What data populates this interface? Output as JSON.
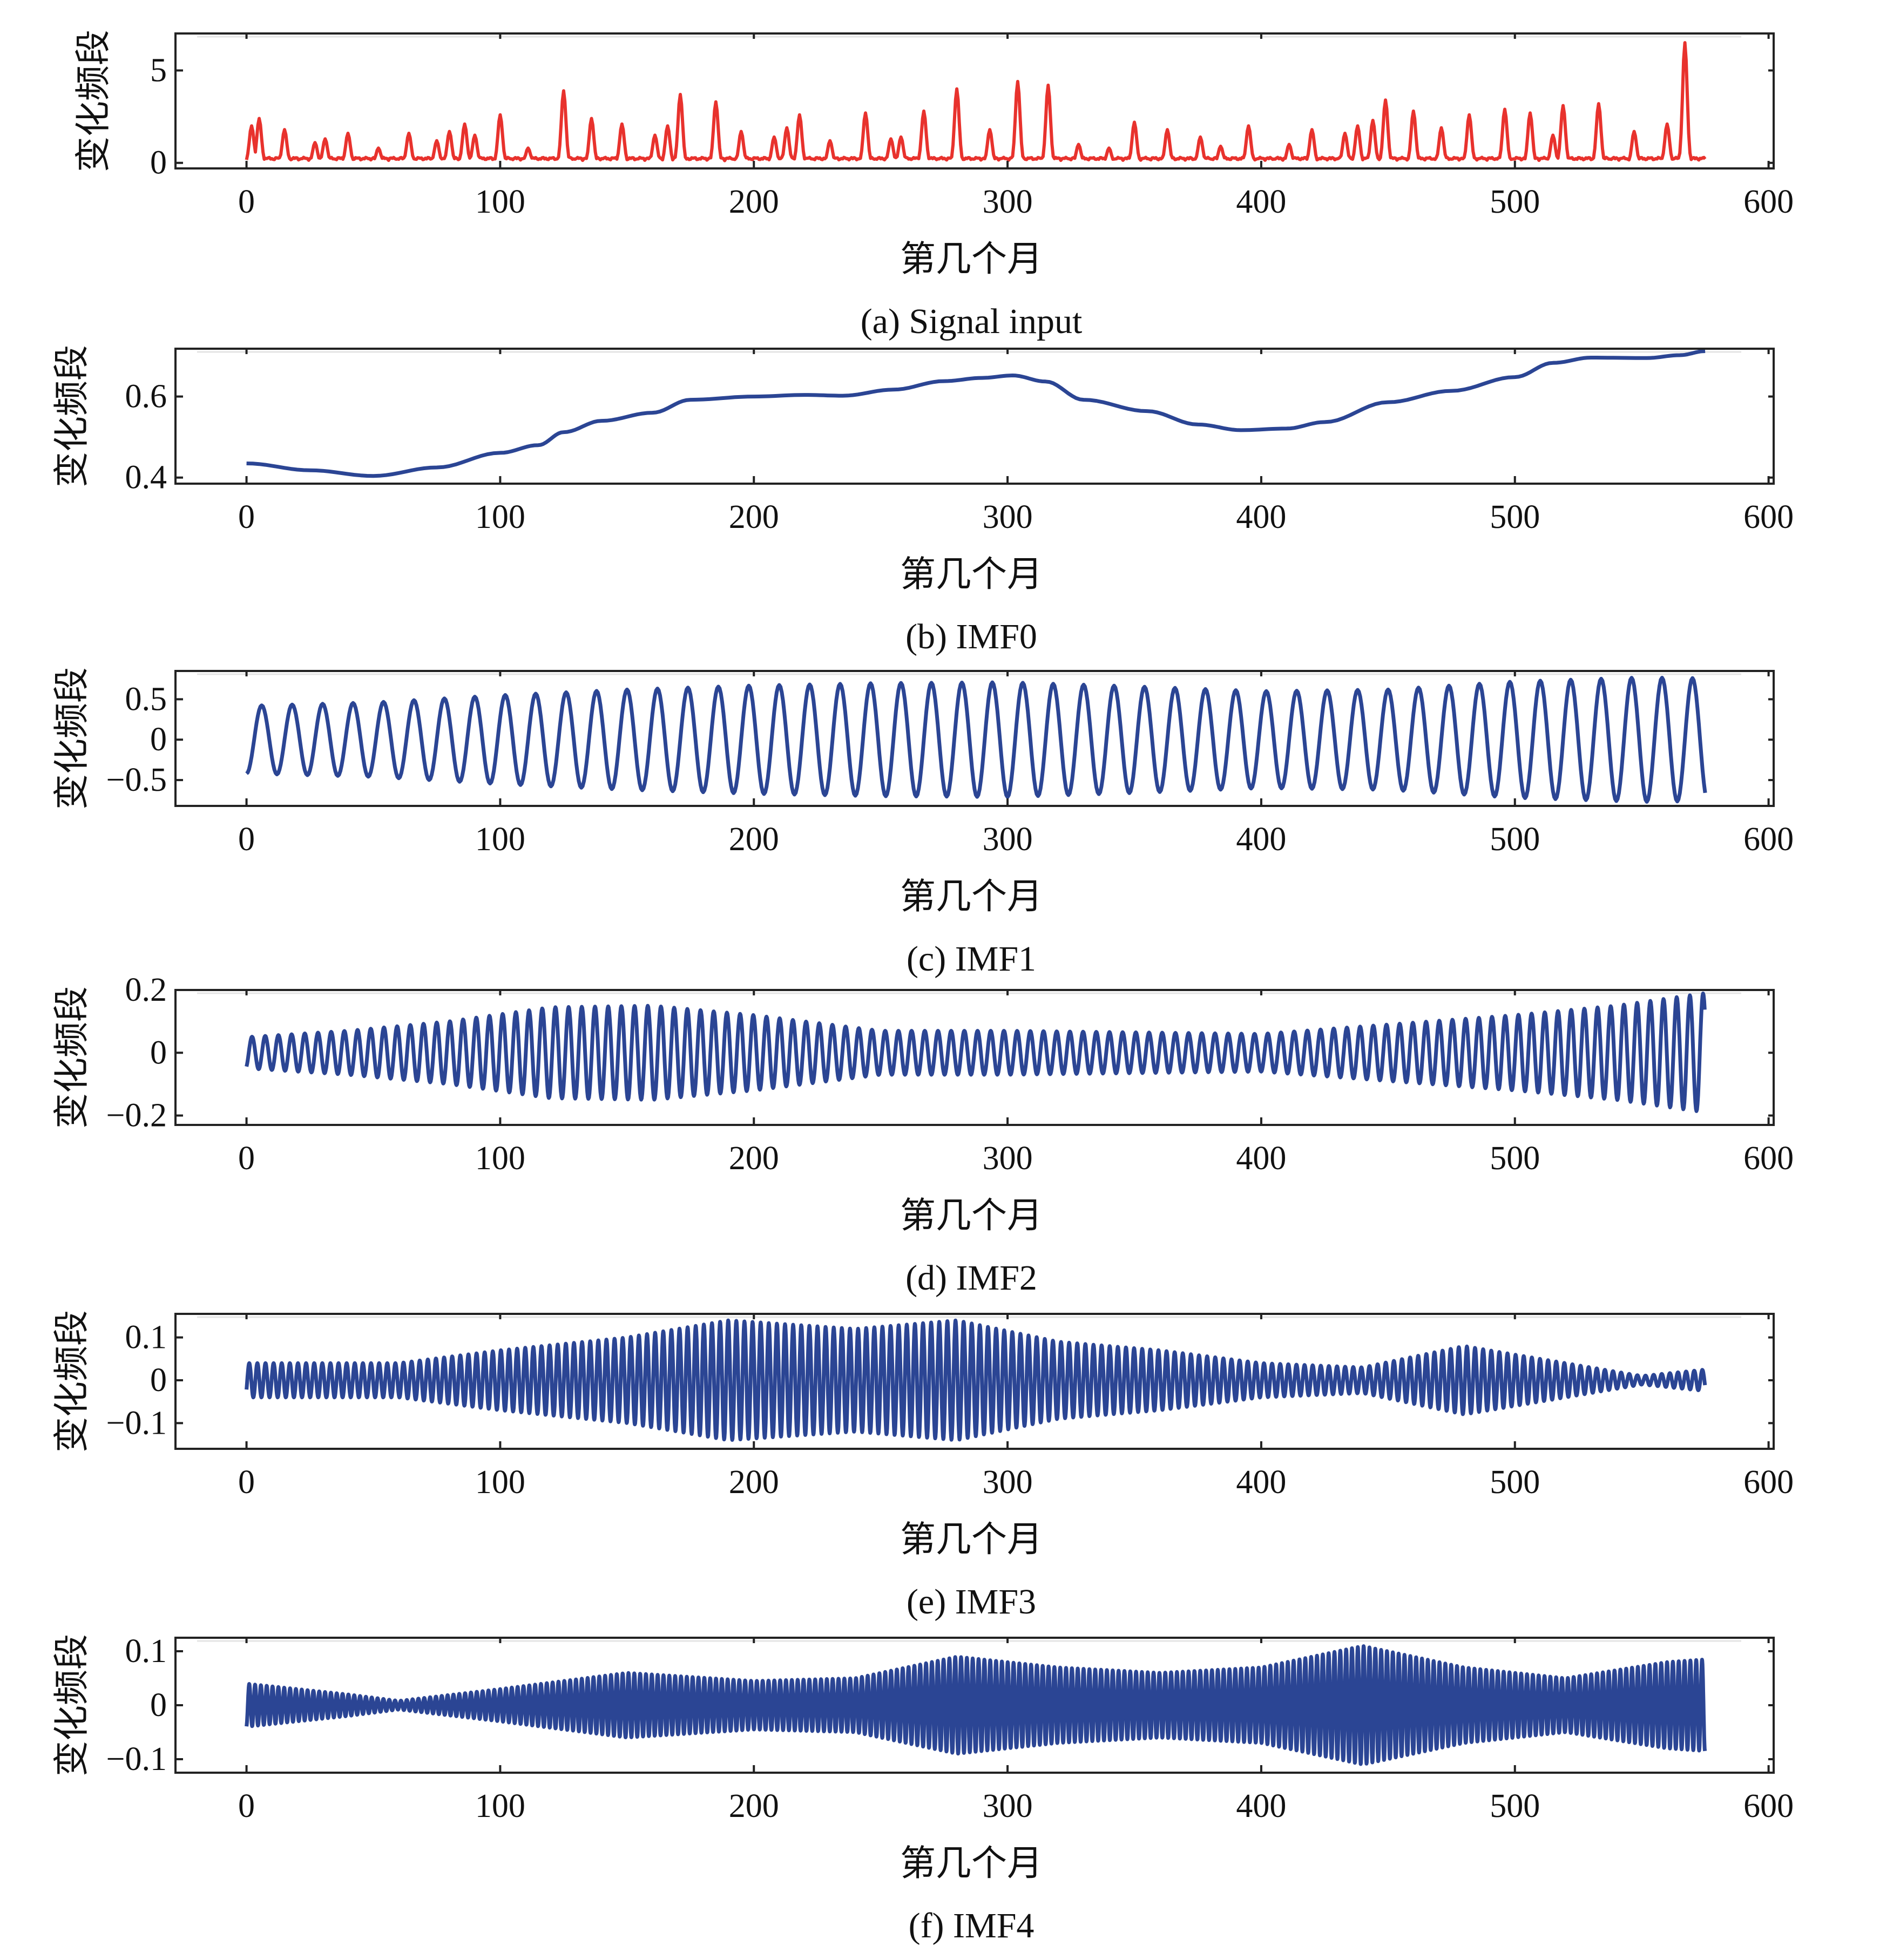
{
  "colors": {
    "signal": "#e8322d",
    "imf": "#2b4594",
    "frame": "#222222",
    "text": "#111111"
  },
  "chart_data": [
    {
      "id": "a",
      "type": "line",
      "caption": "(a) Signal input",
      "xlabel": "第几个月",
      "ylabel": "变化频段",
      "xlim": [
        -28,
        602
      ],
      "ylim": [
        -0.3,
        7.0
      ],
      "xticks": [
        0,
        100,
        200,
        300,
        400,
        500,
        600
      ],
      "xtick_labels": [
        "0",
        "100",
        "200",
        "300",
        "400",
        "500",
        "600"
      ],
      "yticks": [
        0,
        5
      ],
      "ytick_labels": [
        "0",
        "5"
      ],
      "color": "signal",
      "x_range": [
        0,
        575
      ],
      "spikes": [
        [
          2,
          2.0
        ],
        [
          5,
          2.4
        ],
        [
          15,
          1.8
        ],
        [
          27,
          1.1
        ],
        [
          31,
          1.3
        ],
        [
          40,
          1.6
        ],
        [
          52,
          0.8
        ],
        [
          64,
          1.6
        ],
        [
          75,
          1.2
        ],
        [
          80,
          1.7
        ],
        [
          86,
          2.1
        ],
        [
          90,
          1.5
        ],
        [
          100,
          2.6
        ],
        [
          111,
          0.8
        ],
        [
          125,
          3.9
        ],
        [
          136,
          2.4
        ],
        [
          148,
          2.1
        ],
        [
          161,
          1.5
        ],
        [
          166,
          2.0
        ],
        [
          171,
          3.7
        ],
        [
          185,
          3.3
        ],
        [
          195,
          1.7
        ],
        [
          208,
          1.4
        ],
        [
          213,
          1.9
        ],
        [
          218,
          2.6
        ],
        [
          230,
          1.2
        ],
        [
          244,
          2.7
        ],
        [
          254,
          1.3
        ],
        [
          258,
          1.4
        ],
        [
          267,
          2.8
        ],
        [
          280,
          4.0
        ],
        [
          293,
          1.8
        ],
        [
          304,
          4.4
        ],
        [
          316,
          4.2
        ],
        [
          328,
          1.0
        ],
        [
          340,
          0.8
        ],
        [
          350,
          2.2
        ],
        [
          363,
          1.8
        ],
        [
          376,
          1.4
        ],
        [
          384,
          0.9
        ],
        [
          395,
          2.0
        ],
        [
          411,
          1.0
        ],
        [
          420,
          1.8
        ],
        [
          433,
          1.6
        ],
        [
          438,
          2.0
        ],
        [
          444,
          2.3
        ],
        [
          449,
          3.4
        ],
        [
          460,
          2.8
        ],
        [
          471,
          1.9
        ],
        [
          482,
          2.6
        ],
        [
          496,
          2.9
        ],
        [
          506,
          2.7
        ],
        [
          515,
          1.5
        ],
        [
          519,
          3.1
        ],
        [
          533,
          3.2
        ],
        [
          547,
          1.7
        ],
        [
          560,
          2.1
        ],
        [
          567,
          6.5
        ]
      ]
    },
    {
      "id": "b",
      "type": "line",
      "caption": "(b) IMF0",
      "xlabel": "第几个月",
      "ylabel": "变化频段",
      "xlim": [
        -28,
        602
      ],
      "ylim": [
        0.385,
        0.718
      ],
      "xticks": [
        0,
        100,
        200,
        300,
        400,
        500,
        600
      ],
      "xtick_labels": [
        "0",
        "100",
        "200",
        "300",
        "400",
        "500",
        "600"
      ],
      "yticks": [
        0.4,
        0.6
      ],
      "ytick_labels": [
        "0.4",
        "0.6"
      ],
      "color": "imf",
      "points": [
        [
          0,
          0.435
        ],
        [
          25,
          0.418
        ],
        [
          50,
          0.404
        ],
        [
          75,
          0.425
        ],
        [
          100,
          0.461
        ],
        [
          115,
          0.48
        ],
        [
          125,
          0.512
        ],
        [
          140,
          0.54
        ],
        [
          160,
          0.56
        ],
        [
          175,
          0.592
        ],
        [
          200,
          0.6
        ],
        [
          220,
          0.604
        ],
        [
          235,
          0.602
        ],
        [
          255,
          0.617
        ],
        [
          275,
          0.638
        ],
        [
          290,
          0.646
        ],
        [
          302,
          0.652
        ],
        [
          315,
          0.637
        ],
        [
          330,
          0.592
        ],
        [
          355,
          0.564
        ],
        [
          375,
          0.531
        ],
        [
          392,
          0.517
        ],
        [
          410,
          0.521
        ],
        [
          425,
          0.537
        ],
        [
          450,
          0.586
        ],
        [
          475,
          0.614
        ],
        [
          500,
          0.648
        ],
        [
          515,
          0.683
        ],
        [
          530,
          0.696
        ],
        [
          552,
          0.695
        ],
        [
          565,
          0.702
        ],
        [
          575,
          0.712
        ]
      ]
    },
    {
      "id": "c",
      "type": "line",
      "caption": "(c) IMF1",
      "xlabel": "第几个月",
      "ylabel": "变化频段",
      "xlim": [
        -28,
        602
      ],
      "ylim": [
        -0.82,
        0.85
      ],
      "xticks": [
        0,
        100,
        200,
        300,
        400,
        500,
        600
      ],
      "xtick_labels": [
        "0",
        "100",
        "200",
        "300",
        "400",
        "500",
        "600"
      ],
      "yticks": [
        -0.5,
        0,
        0.5
      ],
      "ytick_labels": [
        "−0.5",
        "0",
        "0.5"
      ],
      "color": "imf",
      "x_range": [
        0,
        575
      ],
      "period": 12.0,
      "phase": 0,
      "envelope": [
        [
          0,
          0.42
        ],
        [
          50,
          0.46
        ],
        [
          100,
          0.55
        ],
        [
          150,
          0.62
        ],
        [
          200,
          0.67
        ],
        [
          250,
          0.7
        ],
        [
          300,
          0.71
        ],
        [
          350,
          0.66
        ],
        [
          400,
          0.6
        ],
        [
          450,
          0.62
        ],
        [
          500,
          0.72
        ],
        [
          550,
          0.77
        ],
        [
          575,
          0.76
        ]
      ]
    },
    {
      "id": "d",
      "type": "line",
      "caption": "(d) IMF2",
      "xlabel": "第几个月",
      "ylabel": "变化频段",
      "xlim": [
        -28,
        602
      ],
      "ylim": [
        -0.23,
        0.2
      ],
      "xticks": [
        0,
        100,
        200,
        300,
        400,
        500,
        600
      ],
      "xtick_labels": [
        "0",
        "100",
        "200",
        "300",
        "400",
        "500",
        "600"
      ],
      "yticks": [
        -0.2,
        0,
        0.2
      ],
      "ytick_labels": [
        "−0.2",
        "0",
        "0.2"
      ],
      "color": "imf",
      "x_range": [
        0,
        575
      ],
      "period": 5.2,
      "phase": 0.5,
      "envelope": [
        [
          0,
          0.05
        ],
        [
          40,
          0.07
        ],
        [
          80,
          0.1
        ],
        [
          120,
          0.145
        ],
        [
          160,
          0.15
        ],
        [
          200,
          0.12
        ],
        [
          250,
          0.07
        ],
        [
          300,
          0.07
        ],
        [
          350,
          0.065
        ],
        [
          400,
          0.06
        ],
        [
          450,
          0.09
        ],
        [
          500,
          0.12
        ],
        [
          540,
          0.15
        ],
        [
          575,
          0.19
        ]
      ]
    },
    {
      "id": "e",
      "type": "line",
      "caption": "(e) IMF3",
      "xlabel": "第几个月",
      "ylabel": "变化频段",
      "xlim": [
        -28,
        602
      ],
      "ylim": [
        -0.16,
        0.155
      ],
      "xticks": [
        0,
        100,
        200,
        300,
        400,
        500,
        600
      ],
      "xtick_labels": [
        "0",
        "100",
        "200",
        "300",
        "400",
        "500",
        "600"
      ],
      "yticks": [
        -0.1,
        0,
        0.1
      ],
      "ytick_labels": [
        "−0.1",
        "0",
        "0.1"
      ],
      "color": "imf",
      "x_range": [
        0,
        575
      ],
      "period": 3.2,
      "phase": 1.0,
      "envelope": [
        [
          0,
          0.04
        ],
        [
          60,
          0.04
        ],
        [
          100,
          0.07
        ],
        [
          150,
          0.1
        ],
        [
          190,
          0.14
        ],
        [
          240,
          0.12
        ],
        [
          280,
          0.14
        ],
        [
          320,
          0.09
        ],
        [
          360,
          0.07
        ],
        [
          400,
          0.04
        ],
        [
          440,
          0.03
        ],
        [
          480,
          0.08
        ],
        [
          520,
          0.04
        ],
        [
          550,
          0.01
        ],
        [
          575,
          0.025
        ]
      ]
    },
    {
      "id": "f",
      "type": "line",
      "caption": "(f) IMF4",
      "xlabel": "第几个月",
      "ylabel": "变化频段",
      "xlim": [
        -28,
        602
      ],
      "ylim": [
        -0.125,
        0.125
      ],
      "xticks": [
        0,
        100,
        200,
        300,
        400,
        500,
        600
      ],
      "xtick_labels": [
        "0",
        "100",
        "200",
        "300",
        "400",
        "500",
        "600"
      ],
      "yticks": [
        -0.1,
        0,
        0.1
      ],
      "ytick_labels": [
        "−0.1",
        "0",
        "0.1"
      ],
      "color": "imf",
      "x_range": [
        0,
        575
      ],
      "period": 2.3,
      "phase": 0.2,
      "envelope": [
        [
          0,
          0.04
        ],
        [
          40,
          0.02
        ],
        [
          60,
          0.008
        ],
        [
          100,
          0.03
        ],
        [
          150,
          0.06
        ],
        [
          200,
          0.045
        ],
        [
          240,
          0.05
        ],
        [
          280,
          0.09
        ],
        [
          320,
          0.07
        ],
        [
          360,
          0.06
        ],
        [
          400,
          0.07
        ],
        [
          440,
          0.11
        ],
        [
          480,
          0.07
        ],
        [
          520,
          0.05
        ],
        [
          560,
          0.08
        ],
        [
          575,
          0.085
        ]
      ]
    }
  ]
}
